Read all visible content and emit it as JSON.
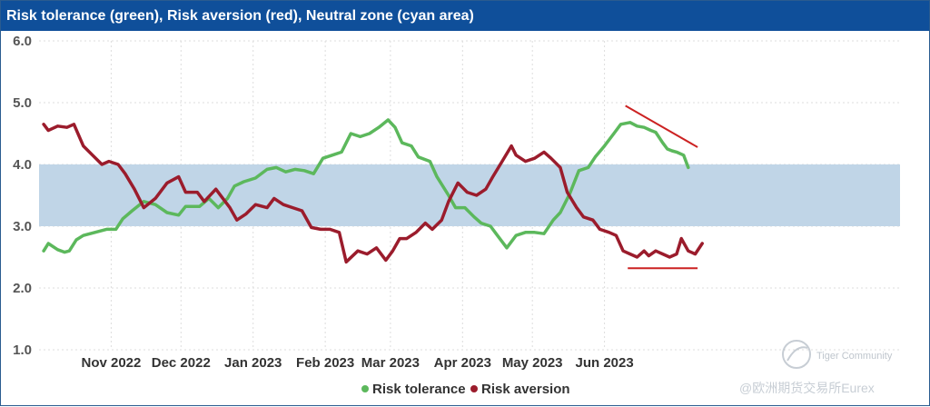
{
  "chart_data": {
    "type": "line",
    "title": "Risk tolerance (green), Risk aversion (red), Neutral zone (cyan area)",
    "ylim": [
      1.0,
      6.0
    ],
    "yticks": [
      "6.0",
      "5.0",
      "4.0",
      "3.0",
      "2.0",
      "1.0"
    ],
    "x_range": [
      0,
      370
    ],
    "x_labels": [
      {
        "label": "Nov 2022",
        "x": 31
      },
      {
        "label": "Dec 2022",
        "x": 61
      },
      {
        "label": "Jan 2023",
        "x": 92
      },
      {
        "label": "Feb 2023",
        "x": 123
      },
      {
        "label": "Mar 2023",
        "x": 151
      },
      {
        "label": "Apr 2023",
        "x": 182
      },
      {
        "label": "May 2023",
        "x": 212
      },
      {
        "label": "Jun 2023",
        "x": 243
      }
    ],
    "neutral_zone": [
      3.0,
      4.0
    ],
    "grid": true,
    "legend_position": "bottom-center",
    "series": [
      {
        "name": "Risk tolerance",
        "color": "#5cb85c",
        "points": [
          [
            2,
            2.6
          ],
          [
            4,
            2.72
          ],
          [
            8,
            2.62
          ],
          [
            11,
            2.58
          ],
          [
            13,
            2.6
          ],
          [
            16,
            2.78
          ],
          [
            19,
            2.85
          ],
          [
            24,
            2.9
          ],
          [
            29,
            2.95
          ],
          [
            33,
            2.95
          ],
          [
            36,
            3.12
          ],
          [
            40,
            3.25
          ],
          [
            45,
            3.4
          ],
          [
            50,
            3.35
          ],
          [
            55,
            3.22
          ],
          [
            60,
            3.18
          ],
          [
            63,
            3.32
          ],
          [
            69,
            3.32
          ],
          [
            73,
            3.45
          ],
          [
            77,
            3.3
          ],
          [
            81,
            3.45
          ],
          [
            84,
            3.65
          ],
          [
            88,
            3.72
          ],
          [
            93,
            3.78
          ],
          [
            98,
            3.92
          ],
          [
            102,
            3.95
          ],
          [
            106,
            3.88
          ],
          [
            110,
            3.92
          ],
          [
            114,
            3.9
          ],
          [
            118,
            3.85
          ],
          [
            122,
            4.1
          ],
          [
            126,
            4.15
          ],
          [
            130,
            4.2
          ],
          [
            134,
            4.5
          ],
          [
            138,
            4.45
          ],
          [
            142,
            4.5
          ],
          [
            146,
            4.6
          ],
          [
            150,
            4.72
          ],
          [
            153,
            4.6
          ],
          [
            156,
            4.35
          ],
          [
            160,
            4.3
          ],
          [
            163,
            4.12
          ],
          [
            168,
            4.05
          ],
          [
            171,
            3.8
          ],
          [
            176,
            3.5
          ],
          [
            179,
            3.3
          ],
          [
            183,
            3.3
          ],
          [
            187,
            3.15
          ],
          [
            190,
            3.05
          ],
          [
            194,
            3.0
          ],
          [
            197,
            2.85
          ],
          [
            201,
            2.65
          ],
          [
            205,
            2.85
          ],
          [
            209,
            2.9
          ],
          [
            213,
            2.9
          ],
          [
            217,
            2.88
          ],
          [
            221,
            3.1
          ],
          [
            224,
            3.22
          ],
          [
            228,
            3.52
          ],
          [
            232,
            3.9
          ],
          [
            236,
            3.95
          ],
          [
            239,
            4.12
          ],
          [
            243,
            4.3
          ],
          [
            247,
            4.5
          ],
          [
            250,
            4.65
          ],
          [
            254,
            4.68
          ],
          [
            257,
            4.62
          ],
          [
            260,
            4.6
          ],
          [
            263,
            4.55
          ],
          [
            265,
            4.52
          ],
          [
            268,
            4.35
          ],
          [
            270,
            4.25
          ],
          [
            272,
            4.22
          ],
          [
            274,
            4.2
          ],
          [
            277,
            4.15
          ],
          [
            279,
            3.95
          ]
        ]
      },
      {
        "name": "Risk aversion",
        "color": "#9b1c2c",
        "points": [
          [
            2,
            4.65
          ],
          [
            4,
            4.55
          ],
          [
            8,
            4.62
          ],
          [
            12,
            4.6
          ],
          [
            15,
            4.65
          ],
          [
            19,
            4.3
          ],
          [
            23,
            4.15
          ],
          [
            27,
            4.0
          ],
          [
            30,
            4.05
          ],
          [
            34,
            4.0
          ],
          [
            37,
            3.85
          ],
          [
            41,
            3.6
          ],
          [
            45,
            3.3
          ],
          [
            50,
            3.45
          ],
          [
            55,
            3.7
          ],
          [
            60,
            3.8
          ],
          [
            63,
            3.55
          ],
          [
            68,
            3.55
          ],
          [
            71,
            3.4
          ],
          [
            76,
            3.6
          ],
          [
            79,
            3.45
          ],
          [
            82,
            3.3
          ],
          [
            85,
            3.1
          ],
          [
            89,
            3.2
          ],
          [
            93,
            3.35
          ],
          [
            98,
            3.3
          ],
          [
            101,
            3.45
          ],
          [
            105,
            3.35
          ],
          [
            109,
            3.3
          ],
          [
            113,
            3.25
          ],
          [
            117,
            2.98
          ],
          [
            121,
            2.95
          ],
          [
            125,
            2.95
          ],
          [
            129,
            2.9
          ],
          [
            132,
            2.42
          ],
          [
            137,
            2.6
          ],
          [
            141,
            2.55
          ],
          [
            145,
            2.65
          ],
          [
            149,
            2.45
          ],
          [
            152,
            2.6
          ],
          [
            155,
            2.8
          ],
          [
            158,
            2.8
          ],
          [
            162,
            2.9
          ],
          [
            166,
            3.05
          ],
          [
            169,
            2.95
          ],
          [
            173,
            3.1
          ],
          [
            176,
            3.4
          ],
          [
            180,
            3.7
          ],
          [
            184,
            3.55
          ],
          [
            188,
            3.5
          ],
          [
            192,
            3.6
          ],
          [
            195,
            3.8
          ],
          [
            199,
            4.05
          ],
          [
            203,
            4.3
          ],
          [
            205,
            4.15
          ],
          [
            209,
            4.05
          ],
          [
            213,
            4.1
          ],
          [
            217,
            4.2
          ],
          [
            220,
            4.1
          ],
          [
            224,
            3.95
          ],
          [
            227,
            3.55
          ],
          [
            231,
            3.3
          ],
          [
            234,
            3.15
          ],
          [
            238,
            3.1
          ],
          [
            241,
            2.95
          ],
          [
            245,
            2.9
          ],
          [
            248,
            2.85
          ],
          [
            251,
            2.6
          ],
          [
            254,
            2.55
          ],
          [
            257,
            2.5
          ],
          [
            260,
            2.6
          ],
          [
            262,
            2.52
          ],
          [
            265,
            2.6
          ],
          [
            268,
            2.55
          ],
          [
            271,
            2.5
          ],
          [
            274,
            2.55
          ],
          [
            276,
            2.8
          ],
          [
            279,
            2.6
          ],
          [
            282,
            2.55
          ],
          [
            285,
            2.72
          ]
        ]
      }
    ],
    "annotations": [
      {
        "type": "trendline",
        "color": "#cc2222",
        "from": [
          252,
          4.95
        ],
        "to": [
          283,
          4.28
        ]
      },
      {
        "type": "trendline",
        "color": "#cc2222",
        "from": [
          253,
          2.32
        ],
        "to": [
          283,
          2.32
        ]
      }
    ],
    "watermark": {
      "line1": "Tiger Community",
      "line2": "@欧洲期货交易所Eurex"
    }
  }
}
